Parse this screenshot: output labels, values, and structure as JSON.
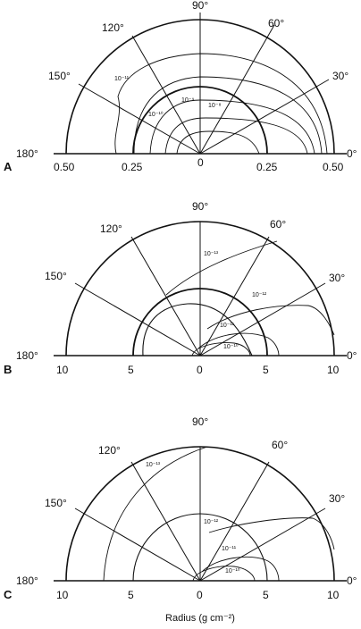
{
  "panels": [
    {
      "label": "A",
      "angles": [
        "180°",
        "150°",
        "120°",
        "90°",
        "60°",
        "30°",
        "0°"
      ],
      "radius_ticks": [
        "0.50",
        "0.25",
        "0",
        "0.25",
        "0.50"
      ],
      "contours": [
        "10⁻¹¹",
        "10⁻¹⁰",
        "10⁻⁹",
        "10⁻⁸"
      ]
    },
    {
      "label": "B",
      "angles": [
        "180°",
        "150°",
        "120°",
        "90°",
        "60°",
        "30°",
        "0°"
      ],
      "radius_ticks": [
        "10",
        "5",
        "0",
        "5",
        "10"
      ],
      "contours": [
        "10⁻¹³",
        "10⁻¹²",
        "10⁻¹¹",
        "10⁻¹⁰"
      ]
    },
    {
      "label": "C",
      "angles": [
        "180°",
        "150°",
        "120°",
        "90°",
        "60°",
        "30°",
        "0°"
      ],
      "radius_ticks": [
        "10",
        "5",
        "0",
        "5",
        "10"
      ],
      "contours": [
        "10⁻¹³",
        "10⁻¹²",
        "10⁻¹¹",
        "10⁻¹⁰"
      ]
    }
  ],
  "axis_title": "Radius (g cm⁻²)"
}
